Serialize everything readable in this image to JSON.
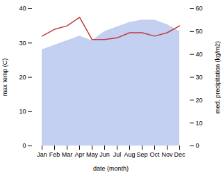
{
  "chart_data": {
    "type": "line",
    "categories": [
      "Jan",
      "Feb",
      "Mar",
      "Apr",
      "May",
      "Jun",
      "Jul",
      "Aug",
      "Sep",
      "Oct",
      "Nov",
      "Dec"
    ],
    "xlabel": "date (month)",
    "ylabel": "max temp (C)",
    "y2label": "med. precipitation (kg/m2)",
    "ylim": [
      0,
      40
    ],
    "yticks": [
      0,
      10,
      20,
      30,
      40
    ],
    "y2lim": [
      0,
      60
    ],
    "y2ticks": [
      0,
      10,
      20,
      30,
      40,
      50,
      60
    ],
    "series": [
      {
        "type": "area",
        "color": "#b8c8ee",
        "axis": "y2",
        "values": [
          42,
          44,
          46,
          48,
          46,
          50,
          52,
          54,
          55,
          55,
          53,
          50
        ]
      },
      {
        "type": "line",
        "color": "#c0393b",
        "values": [
          32,
          34,
          35,
          37.5,
          31,
          31,
          31.5,
          33,
          33,
          32,
          33,
          35
        ]
      }
    ]
  }
}
